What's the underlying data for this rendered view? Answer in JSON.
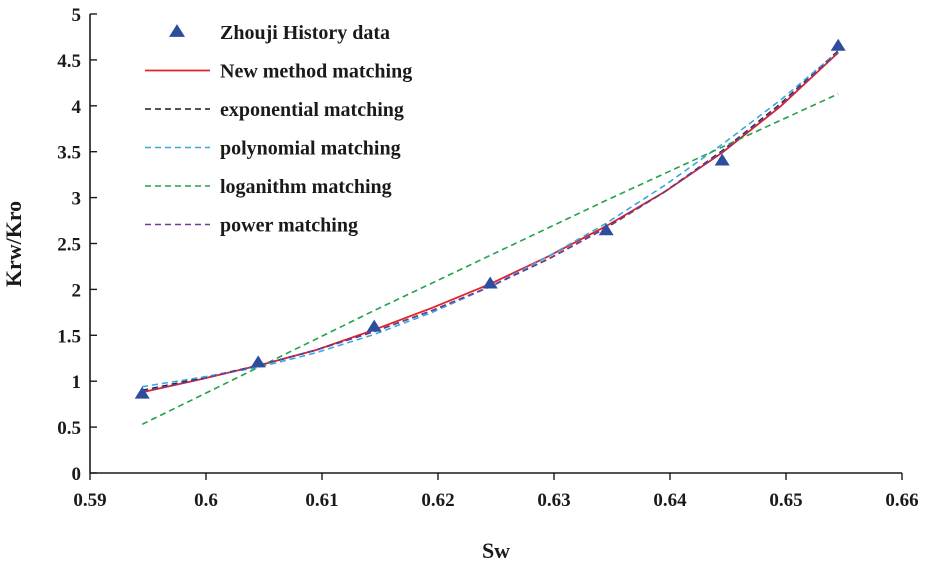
{
  "chart_data": {
    "type": "line",
    "title": "",
    "xlabel": "Sw",
    "ylabel": "Krw/Kro",
    "xlim": [
      0.59,
      0.66
    ],
    "ylim": [
      0,
      5
    ],
    "x_ticks": [
      0.59,
      0.6,
      0.61,
      0.62,
      0.63,
      0.64,
      0.65,
      0.66
    ],
    "x_tick_labels": [
      "0.59",
      "0.6",
      "0.61",
      "0.62",
      "0.63",
      "0.64",
      "0.65",
      "0.66"
    ],
    "y_ticks": [
      0,
      0.5,
      1,
      1.5,
      2,
      2.5,
      3,
      3.5,
      4,
      4.5,
      5
    ],
    "y_tick_labels": [
      "0",
      "0.5",
      "1",
      "1.5",
      "2",
      "2.5",
      "3",
      "3.5",
      "4",
      "4.5",
      "5"
    ],
    "grid": false,
    "legend_position": "top-left",
    "history": {
      "name": "Zhouji History data",
      "color": "#2e4d9c",
      "x": [
        0.5945,
        0.6045,
        0.6145,
        0.6245,
        0.6345,
        0.6445,
        0.6545
      ],
      "y": [
        0.86,
        1.2,
        1.59,
        2.06,
        2.64,
        3.4,
        4.65
      ]
    },
    "series": [
      {
        "name": "New method matching",
        "style": "solid",
        "color": "#e0222a",
        "x": [
          0.5945,
          0.5995,
          0.6045,
          0.6095,
          0.6145,
          0.6195,
          0.6245,
          0.6295,
          0.6345,
          0.6395,
          0.6445,
          0.6495,
          0.6545
        ],
        "y": [
          0.88,
          1.02,
          1.17,
          1.34,
          1.56,
          1.8,
          2.06,
          2.36,
          2.69,
          3.06,
          3.49,
          3.99,
          4.58
        ]
      },
      {
        "name": "exponential matching",
        "style": "dashed",
        "color": "#1a1a1a",
        "x": [
          0.5945,
          0.5995,
          0.6045,
          0.6095,
          0.6145,
          0.6195,
          0.6245,
          0.6295,
          0.6345,
          0.6395,
          0.6445,
          0.6495,
          0.6545
        ],
        "y": [
          0.9,
          1.03,
          1.17,
          1.34,
          1.54,
          1.77,
          2.03,
          2.33,
          2.67,
          3.06,
          3.51,
          4.02,
          4.6
        ]
      },
      {
        "name": "polynomial matching",
        "style": "dashed",
        "color": "#3aa8e0",
        "x": [
          0.5945,
          0.5995,
          0.6045,
          0.6095,
          0.6145,
          0.6195,
          0.6245,
          0.6295,
          0.6345,
          0.6395,
          0.6445,
          0.6495,
          0.6545
        ],
        "y": [
          0.94,
          1.04,
          1.15,
          1.31,
          1.51,
          1.75,
          2.03,
          2.36,
          2.72,
          3.13,
          3.58,
          4.06,
          4.59
        ]
      },
      {
        "name": "loganithm matching",
        "style": "dashed",
        "color": "#22a24a",
        "x": [
          0.5945,
          0.5995,
          0.6045,
          0.6095,
          0.6145,
          0.6195,
          0.6245,
          0.6295,
          0.6345,
          0.6395,
          0.6445,
          0.6495,
          0.6545
        ],
        "y": [
          0.53,
          0.84,
          1.15,
          1.46,
          1.77,
          2.07,
          2.37,
          2.67,
          2.97,
          3.26,
          3.55,
          3.84,
          4.13
        ]
      },
      {
        "name": "power matching",
        "style": "dashed",
        "color": "#6a3d9a",
        "x": [
          0.5945,
          0.5995,
          0.6045,
          0.6095,
          0.6145,
          0.6195,
          0.6245,
          0.6295,
          0.6345,
          0.6395,
          0.6445,
          0.6495,
          0.6545
        ],
        "y": [
          0.89,
          1.02,
          1.17,
          1.34,
          1.54,
          1.77,
          2.03,
          2.33,
          2.67,
          3.06,
          3.5,
          4.01,
          4.59
        ]
      }
    ]
  }
}
